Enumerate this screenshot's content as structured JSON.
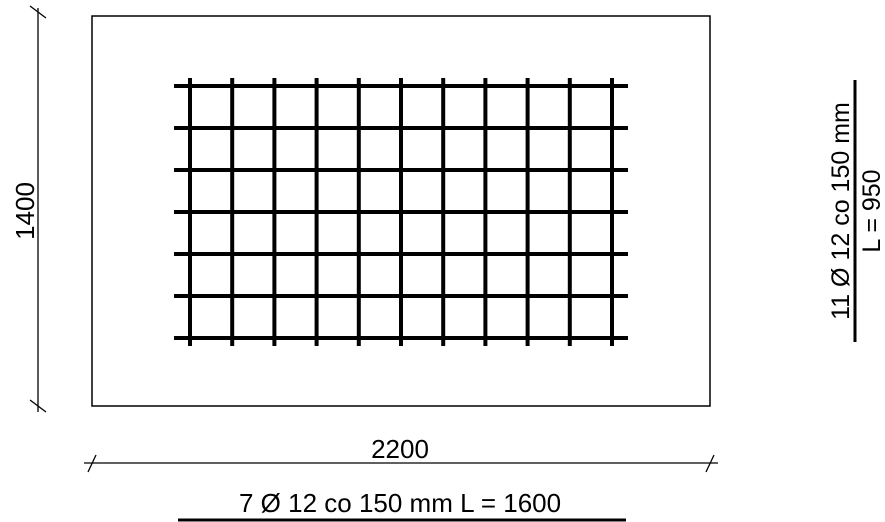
{
  "dimensions": {
    "height_label": "1400",
    "width_label": "2200"
  },
  "reinforcement": {
    "bottom_callout": "7 Ø 12 co 150 mm L = 1600",
    "side_callout_top": "11 Ø 12 co 150 mm",
    "side_callout_bottom": "L = 950"
  },
  "grid": {
    "horizontal_bars": 7,
    "vertical_bars": 11
  }
}
